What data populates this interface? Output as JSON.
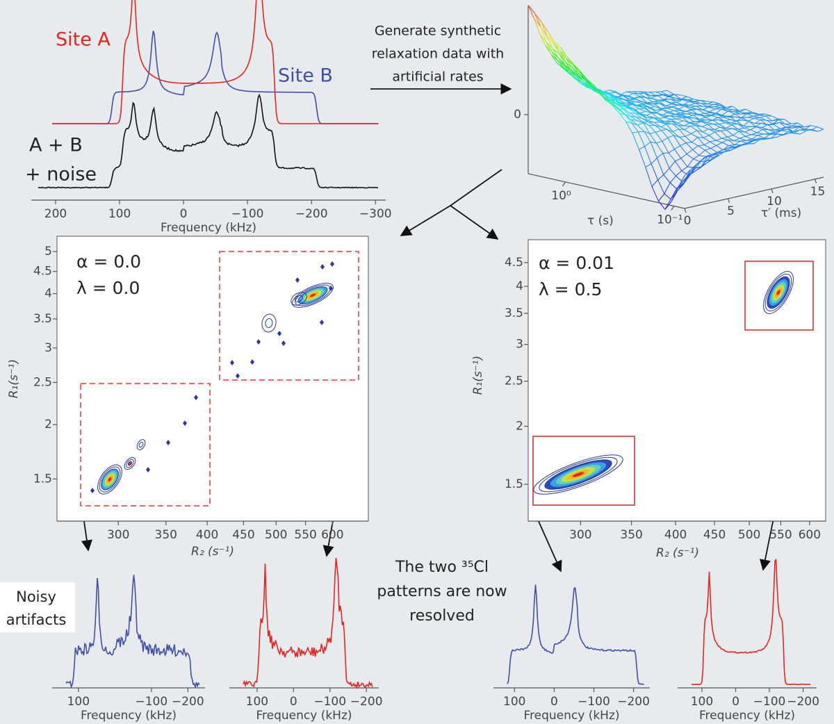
{
  "top_spectrum": {
    "labels": {
      "site_a": "Site A",
      "site_b": "Site B",
      "sum_1": "A + B",
      "sum_2": "+ noise"
    },
    "xlabel": "Frequency (kHz)",
    "xlim": [
      238,
      -316
    ],
    "xticks": [
      200,
      100,
      0,
      {
        "value": -100,
        "label": "−100"
      },
      {
        "value": -200,
        "label": "−200"
      },
      {
        "value": -300,
        "label": "−300"
      }
    ]
  },
  "arrow_text": [
    "Generate synthetic",
    "relaxation data with",
    "artificial rates"
  ],
  "surface": {
    "zticks": [
      0
    ],
    "tau_lim": [
      2.2,
      0.08
    ],
    "tau_ticks": [
      {
        "value": 1,
        "label": "10⁰"
      },
      {
        "value": 0.1,
        "label": "10⁻¹"
      }
    ],
    "tau_label": "τ (s)",
    "tau_prime_lim": [
      0,
      16
    ],
    "tau_prime_ticks": [
      0,
      5,
      10,
      15
    ],
    "tau_prime_label": "τ′ (ms)"
  },
  "maps": [
    {
      "alpha_text": "α = 0.0",
      "lambda_text": "λ = 0.0",
      "xlabel": "R₂ (s⁻¹)",
      "ylabel": "R₁(s⁻¹)",
      "xlim": [
        246,
        674
      ],
      "ylim": [
        1.2,
        5.42
      ],
      "log": true,
      "xticks": [
        300,
        350,
        400,
        450,
        500,
        550,
        600
      ],
      "yticks": [
        1.5,
        2,
        2.5,
        3,
        3.5,
        4,
        4.5,
        5
      ]
    },
    {
      "alpha_text": "α = 0.01",
      "lambda_text": "λ = 0.5",
      "xlabel": "R₂ (s⁻¹)",
      "ylabel": "R₁(s⁻¹)",
      "xlim": [
        256,
        630
      ],
      "ylim": [
        1.25,
        5.04
      ],
      "log": true,
      "xticks": [
        300,
        350,
        400,
        450,
        500,
        550,
        600
      ],
      "yticks": [
        1.5,
        2,
        2.5,
        3,
        3.5,
        4,
        4.5
      ]
    }
  ],
  "spectra": [
    {
      "xlabel": "Frequency (kHz)",
      "xlim": [
        172,
        -247
      ],
      "xticks": [
        100,
        {
          "value": -100,
          "label": "−100"
        },
        {
          "value": -200,
          "label": "−200"
        }
      ]
    },
    {
      "xlabel": "Frequency (kHz)",
      "xlim": [
        176,
        -234
      ],
      "xticks": [
        100,
        0,
        {
          "value": -100,
          "label": "−100"
        },
        {
          "value": -200,
          "label": "−200"
        }
      ]
    },
    {
      "xlabel": "Frequency (kHz)",
      "xlim": [
        153,
        -241
      ],
      "xticks": [
        100,
        0,
        {
          "value": -100,
          "label": "−100"
        },
        {
          "value": -200,
          "label": "−200"
        }
      ]
    },
    {
      "xlabel": "Frequency (kHz)",
      "xlim": [
        172,
        -240
      ],
      "xticks": [
        100,
        0,
        {
          "value": -100,
          "label": "−100"
        },
        {
          "value": -200,
          "label": "−200"
        }
      ]
    }
  ],
  "notes": {
    "noisy": [
      "Noisy",
      "artifacts"
    ],
    "resolved": [
      "The two ³⁵Cl",
      "patterns are now",
      "resolved"
    ]
  }
}
